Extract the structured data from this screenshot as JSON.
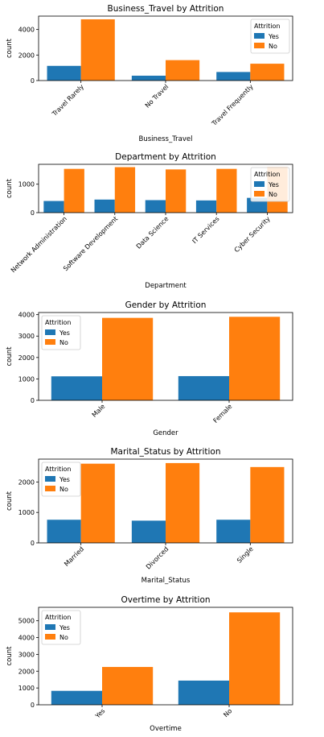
{
  "colors": {
    "yes": "#1f77b4",
    "no": "#ff7f0e"
  },
  "chart_data": [
    {
      "type": "bar",
      "title": "Business_Travel by Attrition",
      "xlabel": "Business_Travel",
      "ylabel": "count",
      "categories": [
        "Travel Rarely",
        "No Travel",
        "Travel Frequently"
      ],
      "series": [
        {
          "name": "Yes",
          "values": [
            1150,
            380,
            670
          ]
        },
        {
          "name": "No",
          "values": [
            4800,
            1600,
            1320
          ]
        }
      ],
      "ylim": [
        0,
        5050
      ],
      "yticks": [
        0,
        2000,
        4000
      ],
      "legend_title": "Attrition",
      "legend": "top-right",
      "grid": false
    },
    {
      "type": "bar",
      "title": "Department by Attrition",
      "xlabel": "Department",
      "ylabel": "count",
      "categories": [
        "Network Administration",
        "Software Development",
        "Data Science",
        "IT Services",
        "Cyber Security"
      ],
      "series": [
        {
          "name": "Yes",
          "values": [
            410,
            460,
            440,
            430,
            520
          ]
        },
        {
          "name": "No",
          "values": [
            1540,
            1600,
            1520,
            1540,
            1600
          ]
        }
      ],
      "ylim": [
        0,
        1700
      ],
      "yticks": [
        0,
        1000
      ],
      "legend_title": "Attrition",
      "legend": "top-right",
      "grid": false
    },
    {
      "type": "bar",
      "title": "Gender by Attrition",
      "xlabel": "Gender",
      "ylabel": "count",
      "categories": [
        "Male",
        "Female"
      ],
      "series": [
        {
          "name": "Yes",
          "values": [
            1120,
            1130
          ]
        },
        {
          "name": "No",
          "values": [
            3850,
            3900
          ]
        }
      ],
      "ylim": [
        0,
        4100
      ],
      "yticks": [
        0,
        1000,
        2000,
        3000,
        4000
      ],
      "legend_title": "Attrition",
      "legend": "top-left",
      "grid": false
    },
    {
      "type": "bar",
      "title": "Marital_Status by Attrition",
      "xlabel": "Marital_Status",
      "ylabel": "count",
      "categories": [
        "Married",
        "Divorced",
        "Single"
      ],
      "series": [
        {
          "name": "Yes",
          "values": [
            760,
            730,
            760
          ]
        },
        {
          "name": "No",
          "values": [
            2600,
            2620,
            2490
          ]
        }
      ],
      "ylim": [
        0,
        2750
      ],
      "yticks": [
        0,
        1000,
        2000
      ],
      "legend_title": "Attrition",
      "legend": "top-left",
      "grid": false
    },
    {
      "type": "bar",
      "title": "Overtime by Attrition",
      "xlabel": "Overtime",
      "ylabel": "count",
      "categories": [
        "Yes",
        "No"
      ],
      "series": [
        {
          "name": "Yes",
          "values": [
            830,
            1440
          ]
        },
        {
          "name": "No",
          "values": [
            2250,
            5500
          ]
        }
      ],
      "ylim": [
        0,
        5800
      ],
      "yticks": [
        0,
        1000,
        2000,
        3000,
        4000,
        5000
      ],
      "legend_title": "Attrition",
      "legend": "top-left",
      "grid": false
    }
  ]
}
